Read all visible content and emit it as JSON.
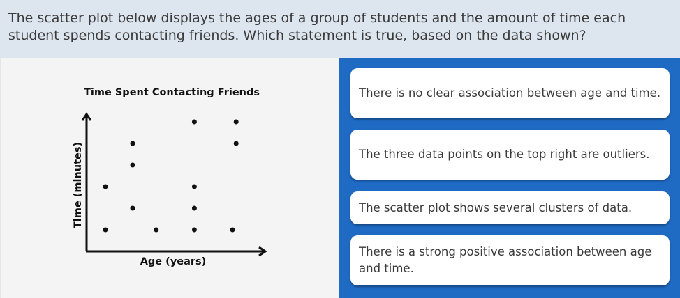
{
  "question": "The scatter plot below displays the ages of a group of students and the amount of time each student spends contacting friends. Which statement is true, based on the data shown?",
  "options": [
    "There is no clear association between age and time.",
    "The three data points on the top right are outliers.",
    "The scatter plot shows several clusters of data.",
    "There is a strong positive association between age and time."
  ],
  "colors": {
    "panel": "#1f6bc4",
    "header": "#dde5ef",
    "points": "#111111"
  },
  "chart_data": {
    "type": "scatter",
    "title": "Time Spent Contacting Friends",
    "xlabel": "Age (years)",
    "ylabel": "Time (minutes)",
    "axis_ticks": false,
    "grid": false,
    "xlim": [
      0,
      9.8
    ],
    "ylim": [
      0,
      6.8
    ],
    "points": [
      [
        1,
        1
      ],
      [
        1,
        3
      ],
      [
        2.5,
        2
      ],
      [
        2.5,
        4
      ],
      [
        2.5,
        5
      ],
      [
        3.8,
        1
      ],
      [
        5.9,
        1
      ],
      [
        5.9,
        2
      ],
      [
        5.9,
        3
      ],
      [
        5.9,
        6
      ],
      [
        8,
        1
      ],
      [
        8.2,
        5
      ],
      [
        8.2,
        6
      ]
    ]
  }
}
